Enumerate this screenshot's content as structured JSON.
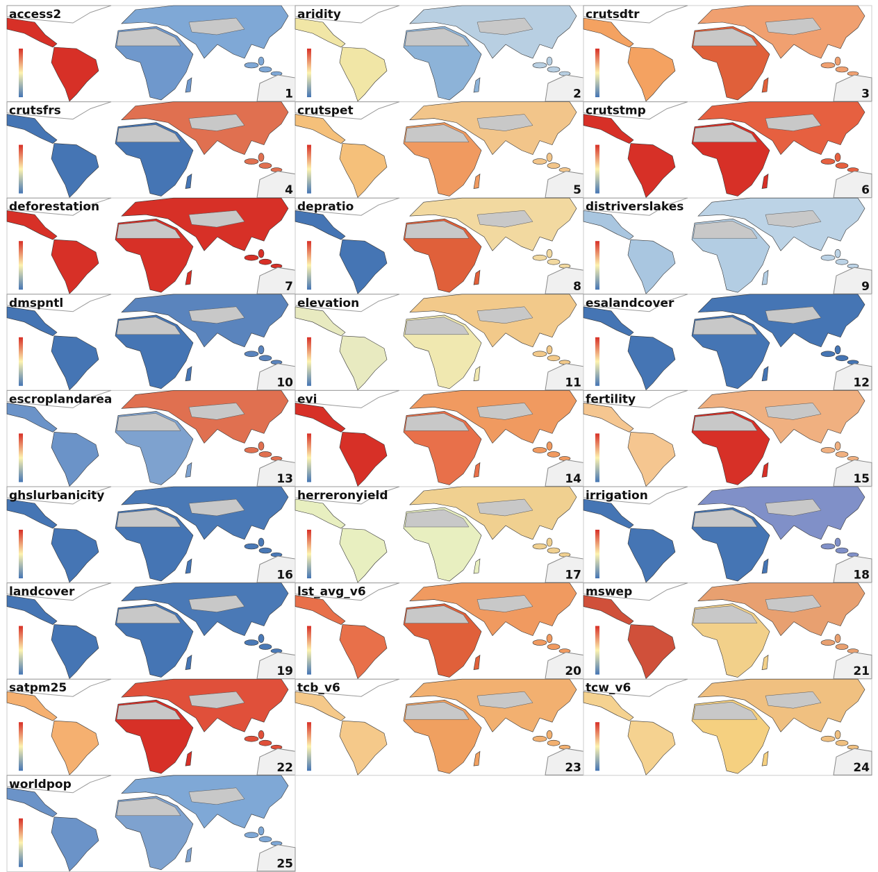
{
  "panels": [
    {
      "title": "access2",
      "number": 1,
      "colors": [
        "#d73027",
        "#6f98cc",
        "#7fa8d6"
      ]
    },
    {
      "title": "aridity",
      "number": 2,
      "colors": [
        "#f1e6a6",
        "#8db3d8",
        "#b8cfe2"
      ]
    },
    {
      "title": "crutsdtr",
      "number": 3,
      "colors": [
        "#f4a261",
        "#e0603a",
        "#f0a070"
      ]
    },
    {
      "title": "crutsfrs",
      "number": 4,
      "colors": [
        "#4575b4",
        "#4575b4",
        "#e07050"
      ]
    },
    {
      "title": "crutspet",
      "number": 5,
      "colors": [
        "#f5c07a",
        "#f09a60",
        "#f2c58a"
      ]
    },
    {
      "title": "crutstmp",
      "number": 6,
      "colors": [
        "#d73027",
        "#d73027",
        "#e66040"
      ]
    },
    {
      "title": "deforestation",
      "number": 7,
      "colors": [
        "#d73027",
        "#d73027",
        "#d73027"
      ]
    },
    {
      "title": "depratio",
      "number": 8,
      "colors": [
        "#4575b4",
        "#e0603a",
        "#f2d9a0"
      ]
    },
    {
      "title": "distriverslakes",
      "number": 9,
      "colors": [
        "#a9c6e0",
        "#b3cde3",
        "#bcd3e6"
      ]
    },
    {
      "title": "dmspntl",
      "number": 10,
      "colors": [
        "#4575b4",
        "#4575b4",
        "#5a84bd"
      ]
    },
    {
      "title": "elevation",
      "number": 11,
      "colors": [
        "#e8eac0",
        "#f0e8b0",
        "#f2c98a"
      ]
    },
    {
      "title": "esalandcover",
      "number": 12,
      "colors": [
        "#4575b4",
        "#4575b4",
        "#4575b4"
      ]
    },
    {
      "title": "escroplandarea",
      "number": 13,
      "colors": [
        "#6b93c8",
        "#7ea2cf",
        "#e07050"
      ]
    },
    {
      "title": "evi",
      "number": 14,
      "colors": [
        "#d73027",
        "#e8704a",
        "#f09a60"
      ]
    },
    {
      "title": "fertility",
      "number": 15,
      "colors": [
        "#f5c690",
        "#d73027",
        "#f0b080"
      ]
    },
    {
      "title": "ghslurbanicity",
      "number": 16,
      "colors": [
        "#4575b4",
        "#4575b4",
        "#4a79b6"
      ]
    },
    {
      "title": "herreronyield",
      "number": 17,
      "colors": [
        "#e8efc0",
        "#e8efc0",
        "#f0d090"
      ]
    },
    {
      "title": "irrigation",
      "number": 18,
      "colors": [
        "#4575b4",
        "#4575b4",
        "#8090c8"
      ]
    },
    {
      "title": "landcover",
      "number": 19,
      "colors": [
        "#4575b4",
        "#4575b4",
        "#4a79b6"
      ]
    },
    {
      "title": "lst_avg_v6",
      "number": 20,
      "colors": [
        "#e8704a",
        "#e0603a",
        "#f09a60"
      ]
    },
    {
      "title": "mswep",
      "number": 21,
      "colors": [
        "#d0503a",
        "#f2d08a",
        "#e8a070"
      ]
    },
    {
      "title": "satpm25",
      "number": 22,
      "colors": [
        "#f5b070",
        "#d73027",
        "#e0503a"
      ]
    },
    {
      "title": "tcb_v6",
      "number": 23,
      "colors": [
        "#f5c98a",
        "#f0a060",
        "#f2b070"
      ]
    },
    {
      "title": "tcw_v6",
      "number": 24,
      "colors": [
        "#f5d290",
        "#f5d080",
        "#f0c080"
      ]
    },
    {
      "title": "worldpop",
      "number": 25,
      "colors": [
        "#6b93c8",
        "#7ea2cf",
        "#7fa8d6"
      ]
    }
  ]
}
